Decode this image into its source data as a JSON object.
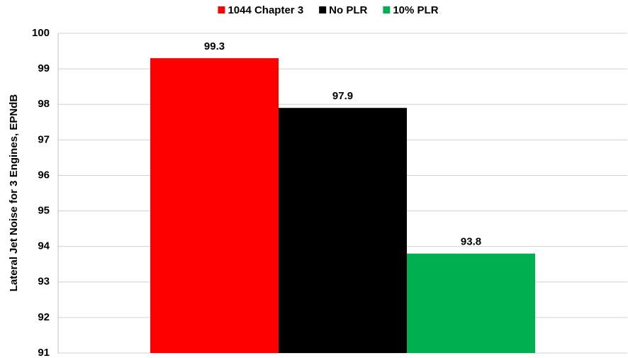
{
  "chart_data": {
    "type": "bar",
    "ylabel": "Lateral Jet Noise for 3 Engines, EPNdB",
    "categories": [
      null
    ],
    "series": [
      {
        "name": "1044 Chapter 3",
        "color": "#ff0000",
        "values": [
          99.3
        ]
      },
      {
        "name": "No PLR",
        "color": "#000000",
        "values": [
          97.9
        ]
      },
      {
        "name": "10% PLR",
        "color": "#00b050",
        "values": [
          93.8
        ]
      }
    ],
    "ylim": [
      91,
      100
    ],
    "yticks": [
      91,
      92,
      93,
      94,
      95,
      96,
      97,
      98,
      99,
      100
    ],
    "grid": true,
    "legend": "top",
    "data_labels": true
  }
}
